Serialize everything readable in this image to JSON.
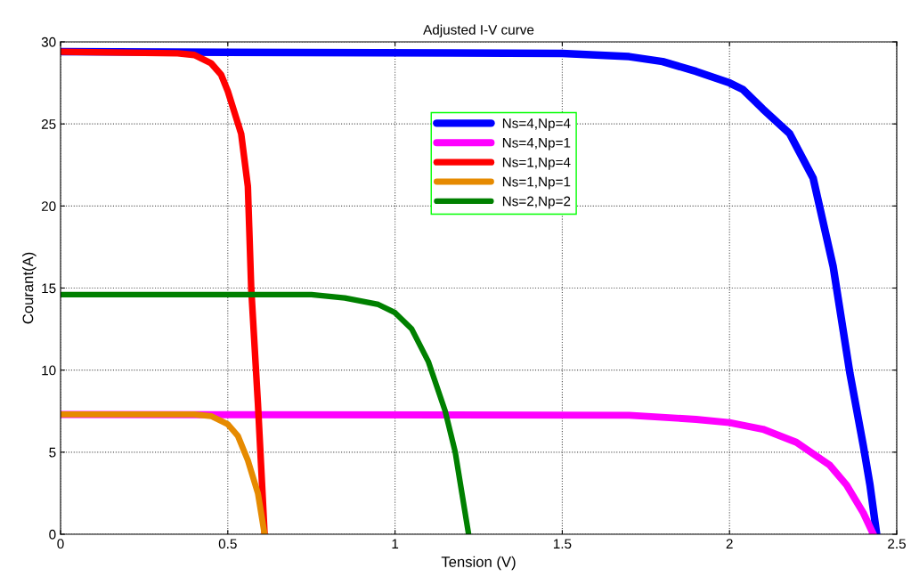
{
  "chart_data": {
    "type": "line",
    "title": "Adjusted I-V curve",
    "xlabel": "Tension (V)",
    "ylabel": "Courant(A)",
    "xlim": [
      0,
      2.5
    ],
    "xticks": [
      0,
      0.5,
      1,
      1.5,
      2,
      2.5
    ],
    "ylim": [
      0,
      30
    ],
    "yticks": [
      0,
      5,
      10,
      15,
      20,
      25,
      30
    ],
    "grid": true,
    "legend": "top",
    "marker": "none",
    "line_style": "solid",
    "series": [
      {
        "name": "Ns=4,Np=4",
        "color": "#0000ff",
        "x": [
          0,
          1.5,
          1.7,
          1.8,
          1.9,
          2.0,
          2.04,
          2.1,
          2.18,
          2.25,
          2.31,
          2.36,
          2.4,
          2.42,
          2.44
        ],
        "values": [
          29.4,
          29.3,
          29.1,
          28.8,
          28.2,
          27.5,
          27.1,
          25.9,
          24.4,
          21.7,
          16.3,
          9.8,
          5.4,
          3.0,
          0
        ]
      },
      {
        "name": "Ns=4,Np=1",
        "color": "#ff00ff",
        "x": [
          0,
          1.7,
          1.9,
          2.0,
          2.1,
          2.2,
          2.3,
          2.35,
          2.4,
          2.43
        ],
        "values": [
          7.3,
          7.25,
          7.0,
          6.8,
          6.4,
          5.6,
          4.2,
          3.0,
          1.3,
          0
        ]
      },
      {
        "name": "Ns=1,Np=4",
        "color": "#ff0000",
        "x": [
          0,
          0.35,
          0.4,
          0.45,
          0.48,
          0.5,
          0.54,
          0.56,
          0.57,
          0.59,
          0.61
        ],
        "values": [
          29.4,
          29.3,
          29.2,
          28.7,
          28.0,
          27.0,
          24.4,
          21.2,
          15,
          8,
          0
        ]
      },
      {
        "name": "Ns=1,Np=1",
        "color": "#e68a00",
        "x": [
          0,
          0.4,
          0.45,
          0.5,
          0.53,
          0.56,
          0.59,
          0.61
        ],
        "values": [
          7.3,
          7.3,
          7.2,
          6.7,
          6.0,
          4.5,
          2.5,
          0
        ]
      },
      {
        "name": "Ns=2,Np=2",
        "color": "#008000",
        "x": [
          0,
          0.75,
          0.85,
          0.95,
          1.0,
          1.05,
          1.1,
          1.15,
          1.18,
          1.2,
          1.22
        ],
        "values": [
          14.6,
          14.6,
          14.4,
          14.0,
          13.5,
          12.5,
          10.5,
          7.5,
          5.0,
          2.5,
          0
        ]
      }
    ]
  }
}
